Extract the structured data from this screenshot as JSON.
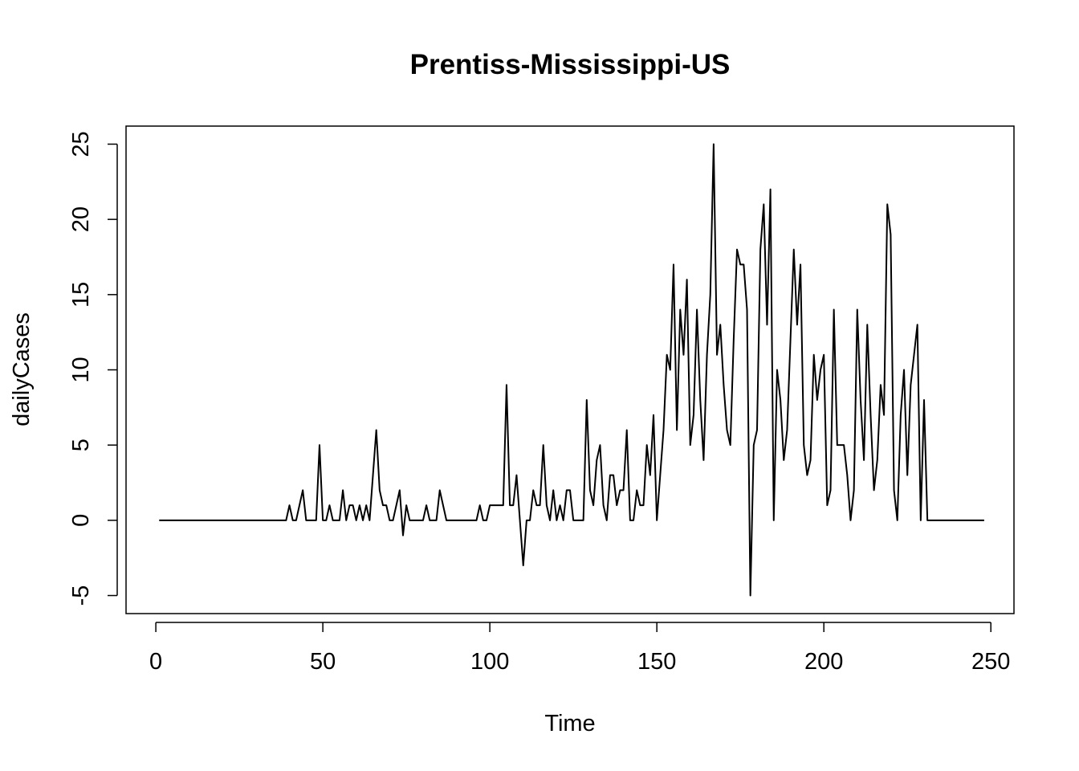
{
  "chart_data": {
    "type": "line",
    "title": "Prentiss-Mississippi-US",
    "xlabel": "Time",
    "ylabel": "dailyCases",
    "xlim": [
      -8.92,
      256.92
    ],
    "ylim": [
      -6.2,
      26.2
    ],
    "xticks": [
      0,
      50,
      100,
      150,
      200,
      250
    ],
    "yticks": [
      -5,
      0,
      5,
      10,
      15,
      20,
      25
    ],
    "grid": false,
    "legend": "none",
    "line_color": "#000000",
    "series": [
      {
        "x_start": 1,
        "values": [
          0,
          0,
          0,
          0,
          0,
          0,
          0,
          0,
          0,
          0,
          0,
          0,
          0,
          0,
          0,
          0,
          0,
          0,
          0,
          0,
          0,
          0,
          0,
          0,
          0,
          0,
          0,
          0,
          0,
          0,
          0,
          0,
          0,
          0,
          0,
          0,
          0,
          0,
          0,
          1,
          0,
          0,
          1,
          2,
          0,
          0,
          0,
          0,
          5,
          0,
          0,
          1,
          0,
          0,
          0,
          2,
          0,
          1,
          1,
          0,
          1,
          0,
          1,
          0,
          3,
          6,
          2,
          1,
          1,
          0,
          0,
          1,
          2,
          -1,
          1,
          0,
          0,
          0,
          0,
          0,
          1,
          0,
          0,
          0,
          2,
          1,
          0,
          0,
          0,
          0,
          0,
          0,
          0,
          0,
          0,
          0,
          1,
          0,
          0,
          1,
          1,
          1,
          1,
          1,
          9,
          1,
          1,
          3,
          0,
          -3,
          0,
          0,
          2,
          1,
          1,
          5,
          1,
          0,
          2,
          0,
          1,
          0,
          2,
          2,
          0,
          0,
          0,
          0,
          8,
          2,
          1,
          4,
          5,
          1,
          0,
          3,
          3,
          1,
          2,
          2,
          6,
          0,
          0,
          2,
          1,
          1,
          5,
          3,
          7,
          0,
          3,
          6,
          11,
          10,
          17,
          6,
          14,
          11,
          16,
          5,
          7,
          14,
          8,
          4,
          11,
          15,
          25,
          11,
          13,
          9,
          6,
          5,
          12,
          18,
          17,
          17,
          14,
          -5,
          5,
          6,
          18,
          21,
          13,
          22,
          0,
          10,
          8,
          4,
          6,
          12,
          18,
          13,
          17,
          5,
          3,
          4,
          11,
          8,
          10,
          11,
          1,
          2,
          14,
          5,
          5,
          5,
          3,
          0,
          2,
          14,
          8,
          4,
          13,
          7,
          2,
          4,
          9,
          7,
          21,
          19,
          2,
          0,
          7,
          10,
          3,
          9,
          11,
          13,
          0,
          8,
          0,
          0,
          0,
          0,
          0,
          0,
          0,
          0,
          0,
          0,
          0,
          0,
          0,
          0,
          0,
          0,
          0,
          0
        ]
      }
    ]
  }
}
